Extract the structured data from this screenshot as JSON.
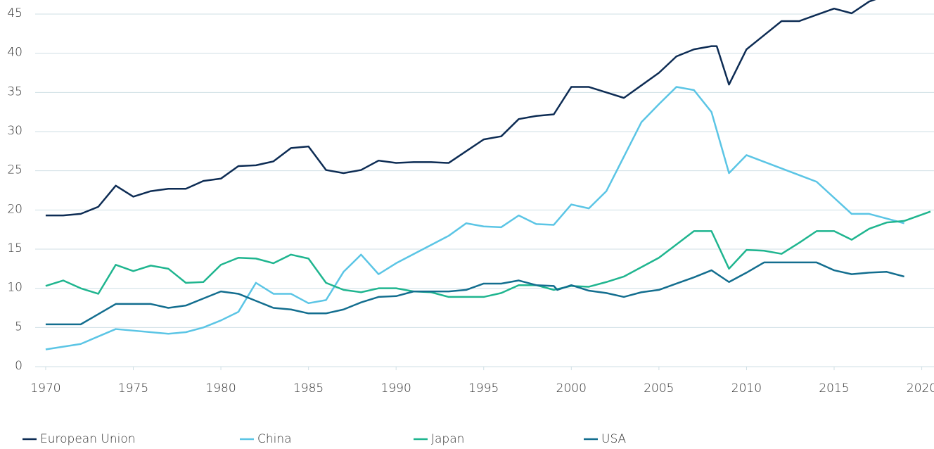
{
  "chart_data": {
    "type": "line",
    "xlim": [
      1969.4,
      2020.7
    ],
    "xticks": [
      1970,
      1975,
      1980,
      1985,
      1990,
      1995,
      2000,
      2005,
      2010,
      2015,
      2020
    ],
    "ylim": [
      0,
      47
    ],
    "yticks": [
      0,
      5,
      10,
      15,
      20,
      25,
      30,
      35,
      40,
      45
    ],
    "grid": true,
    "legend": "bottom",
    "series": [
      {
        "name": "European Union",
        "color": "#0d2c54",
        "x": [
          1970,
          1971,
          1972,
          1973,
          1974,
          1975,
          1976,
          1977,
          1978,
          1979,
          1980,
          1981,
          1982,
          1983,
          1984,
          1985,
          1986,
          1987,
          1988,
          1989,
          1990,
          1991,
          1992,
          1993,
          1994,
          1995,
          1996,
          1997,
          1998,
          1999,
          2000,
          2001,
          2002,
          2003,
          2004,
          2005,
          2006,
          2007,
          2008,
          2008.3,
          2009,
          2010,
          2011,
          2012,
          2013,
          2014,
          2015,
          2016,
          2017,
          2017.5
        ],
        "values": [
          19.3,
          19.3,
          19.5,
          20.4,
          23.1,
          21.7,
          22.4,
          22.7,
          22.7,
          23.7,
          24.0,
          25.6,
          25.7,
          26.2,
          27.9,
          28.1,
          25.1,
          24.7,
          25.1,
          26.3,
          26.0,
          26.1,
          26.1,
          26.0,
          27.5,
          29.0,
          29.4,
          31.6,
          32.0,
          32.2,
          35.7,
          35.7,
          35.0,
          34.3,
          35.9,
          37.5,
          39.6,
          40.5,
          40.9,
          40.9,
          36.0,
          40.5,
          42.3,
          44.1,
          44.1,
          44.9,
          45.7,
          45.1,
          46.6,
          47.0
        ]
      },
      {
        "name": "China",
        "color": "#5bc5e5",
        "x": [
          1970,
          1972,
          1974,
          1977,
          1978,
          1979,
          1980,
          1981,
          1982,
          1983,
          1984,
          1985,
          1986,
          1987,
          1988,
          1989,
          1990,
          1993,
          1994,
          1995,
          1996,
          1997,
          1998,
          1999,
          2000,
          2001,
          2002,
          2003,
          2004,
          2005,
          2006,
          2007,
          2008,
          2009,
          2010,
          2014,
          2016,
          2017,
          2019
        ],
        "values": [
          2.2,
          2.9,
          4.8,
          4.2,
          4.4,
          5.0,
          5.9,
          7.0,
          10.7,
          9.3,
          9.3,
          8.1,
          8.5,
          12.1,
          14.3,
          11.8,
          13.2,
          16.7,
          18.3,
          17.9,
          17.8,
          19.3,
          18.2,
          18.1,
          20.7,
          20.2,
          22.4,
          26.8,
          31.2,
          33.5,
          35.7,
          35.3,
          32.5,
          24.7,
          27.0,
          23.6,
          19.5,
          19.5,
          18.3
        ]
      },
      {
        "name": "Japan",
        "color": "#1fb58f",
        "x": [
          1970,
          1971,
          1972,
          1973,
          1974,
          1975,
          1976,
          1977,
          1978,
          1979,
          1980,
          1981,
          1982,
          1983,
          1984,
          1985,
          1986,
          1987,
          1988,
          1989,
          1990,
          1991,
          1992,
          1993,
          1994,
          1995,
          1996,
          1997,
          1998,
          1999,
          2000,
          2001,
          2002,
          2003,
          2004,
          2005,
          2006,
          2007,
          2008,
          2009,
          2010,
          2011,
          2012,
          2013,
          2014,
          2015,
          2016,
          2017,
          2018,
          2019,
          2020.5
        ],
        "values": [
          10.3,
          11.0,
          10.0,
          9.3,
          13.0,
          12.2,
          12.9,
          12.5,
          10.7,
          10.8,
          13.0,
          13.9,
          13.8,
          13.2,
          14.3,
          13.8,
          10.7,
          9.8,
          9.5,
          10.0,
          10.0,
          9.6,
          9.5,
          8.9,
          8.9,
          8.9,
          9.4,
          10.4,
          10.4,
          9.8,
          10.3,
          10.2,
          10.8,
          11.5,
          12.7,
          13.9,
          15.6,
          17.3,
          17.3,
          12.5,
          14.9,
          14.8,
          14.4,
          15.8,
          17.3,
          17.3,
          16.2,
          17.6,
          18.4,
          18.6,
          19.8
        ]
      },
      {
        "name": "USA",
        "color": "#136e8f",
        "x": [
          1970,
          1972,
          1974,
          1976,
          1977,
          1978,
          1979,
          1980,
          1981,
          1982,
          1983,
          1984,
          1985,
          1986,
          1987,
          1988,
          1989,
          1990,
          1991,
          1992,
          1993,
          1994,
          1995,
          1996,
          1997,
          1998,
          1999,
          1999.2,
          2000,
          2001,
          2002,
          2003,
          2004,
          2005,
          2006,
          2007,
          2008,
          2009,
          2010,
          2011,
          2014,
          2015,
          2016,
          2017,
          2018,
          2019
        ],
        "values": [
          5.4,
          5.4,
          8.0,
          8.0,
          7.5,
          7.8,
          8.7,
          9.6,
          9.3,
          8.4,
          7.5,
          7.3,
          6.8,
          6.8,
          7.3,
          8.2,
          8.9,
          9.0,
          9.6,
          9.6,
          9.6,
          9.8,
          10.6,
          10.6,
          11.0,
          10.4,
          10.3,
          9.8,
          10.4,
          9.7,
          9.4,
          8.9,
          9.5,
          9.8,
          10.6,
          11.4,
          12.3,
          10.8,
          12.0,
          13.3,
          13.3,
          12.3,
          11.8,
          12.0,
          12.1,
          11.5
        ]
      }
    ]
  }
}
